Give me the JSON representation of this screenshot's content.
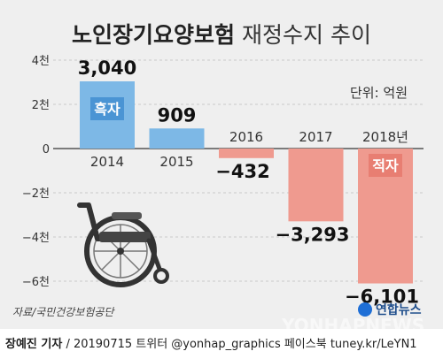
{
  "title_bold": "노인장기요양보험",
  "title_light": " 재정수지 추이",
  "unit": "단위: 억원",
  "source": "자료/국민건강보험공단",
  "logo_text": "연합뉴스",
  "watermark": "YONHAPNEWS",
  "footer": {
    "reporter": "장예진 기자",
    "text": " / 20190715 트위터 @yonhap_graphics  페이스북 tuney.kr/LeYN1"
  },
  "colors": {
    "surplus": "#7db8e6",
    "deficit": "#ef9a8f",
    "surplus_label": "#4a94d4",
    "deficit_label": "#e87e72"
  },
  "chart_data": {
    "type": "bar",
    "categories": [
      "2014",
      "2015",
      "2016",
      "2017",
      "2018년"
    ],
    "values": [
      3040,
      909,
      -432,
      -3293,
      -6101
    ],
    "value_labels": [
      "3,040",
      "909",
      "−432",
      "−3,293",
      "−6,101"
    ],
    "ylim": [
      -7000,
      4000
    ],
    "yticks": [
      {
        "value": 4000,
        "label": "4천"
      },
      {
        "value": 2000,
        "label": "2천"
      },
      {
        "value": 0,
        "label": "0"
      },
      {
        "value": -2000,
        "label": "−2천"
      },
      {
        "value": -4000,
        "label": "−4천"
      },
      {
        "value": -6000,
        "label": "−6천"
      }
    ],
    "annotations": [
      {
        "category": "2014",
        "text": "흑자"
      },
      {
        "category": "2018년",
        "text": "적자"
      }
    ]
  }
}
